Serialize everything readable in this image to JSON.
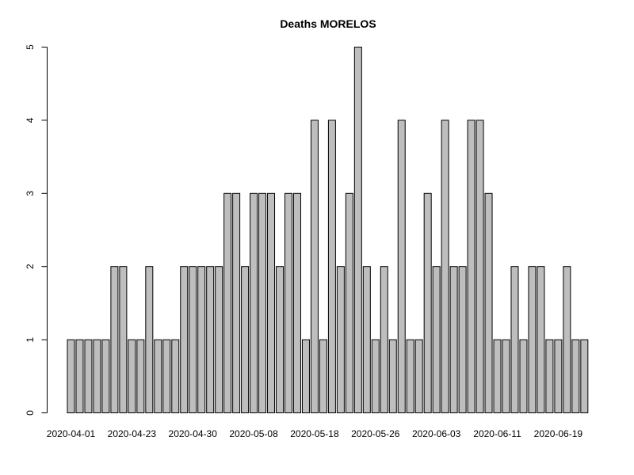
{
  "chart_data": {
    "type": "bar",
    "title": "Deaths MORELOS",
    "xlabel": "",
    "ylabel": "",
    "ylim": [
      0,
      5
    ],
    "y_ticks": [
      0,
      1,
      2,
      3,
      4,
      5
    ],
    "x_tick_labels": [
      "2020-04-01",
      "2020-04-23",
      "2020-04-30",
      "2020-05-08",
      "2020-05-18",
      "2020-05-26",
      "2020-06-03",
      "2020-06-11",
      "2020-06-19"
    ],
    "x_tick_bar_index": [
      0,
      7,
      14,
      21,
      28,
      35,
      42,
      49,
      56
    ],
    "values": [
      1,
      1,
      1,
      1,
      1,
      2,
      2,
      1,
      1,
      2,
      1,
      1,
      1,
      2,
      2,
      2,
      2,
      2,
      3,
      3,
      2,
      3,
      3,
      3,
      2,
      3,
      3,
      1,
      4,
      1,
      4,
      2,
      3,
      5,
      2,
      1,
      2,
      1,
      4,
      1,
      1,
      3,
      2,
      4,
      2,
      2,
      4,
      4,
      3,
      1,
      1,
      2,
      1,
      2,
      2,
      1,
      1,
      2,
      1,
      1
    ],
    "bar_color": "#bebebe",
    "grid": false,
    "legend": "none"
  }
}
